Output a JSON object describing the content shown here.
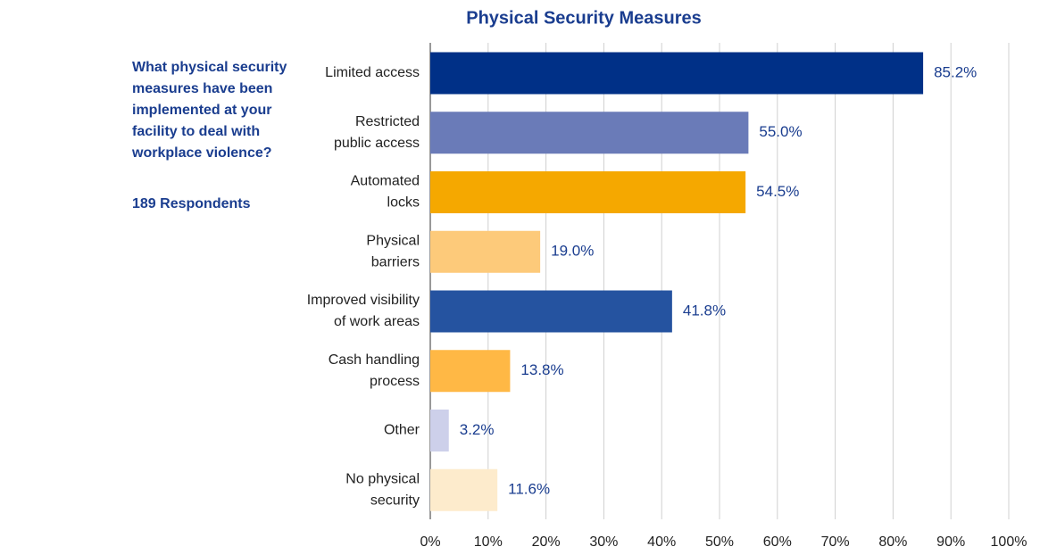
{
  "chart_data": {
    "type": "barh",
    "title": "Physical Security Measures",
    "question": [
      "What physical security",
      "measures have been",
      "implemented at your",
      "facility to deal with",
      "workplace violence?"
    ],
    "respondents": "189 Respondents",
    "categories": [
      "Limited access",
      "Restricted\npublic access",
      "Automated\nlocks",
      "Physical\nbarriers",
      "Improved visibility\nof work areas",
      "Cash handling\nprocess",
      "Other",
      "No physical\nsecurity"
    ],
    "values": [
      85.2,
      55.0,
      54.5,
      19.0,
      41.8,
      13.8,
      3.2,
      11.6
    ],
    "value_labels": [
      "85.2%",
      "55.0%",
      "54.5%",
      "19.0%",
      "41.8%",
      "13.8%",
      "3.2%",
      "11.6%"
    ],
    "colors": [
      "#003087",
      "#6a7bb8",
      "#f5a800",
      "#fdca7a",
      "#2553a0",
      "#ffb845",
      "#cdd0ea",
      "#fdebcc"
    ],
    "xlim": [
      0,
      100
    ],
    "xticks": [
      {
        "value": 0,
        "label": "0%"
      },
      {
        "value": 10,
        "label": "10%"
      },
      {
        "value": 20,
        "label": "20%"
      },
      {
        "value": 30,
        "label": "30%"
      },
      {
        "value": 40,
        "label": "40%"
      },
      {
        "value": 50,
        "label": "50%"
      },
      {
        "value": 60,
        "label": "60%"
      },
      {
        "value": 70,
        "label": "70%"
      },
      {
        "value": 80,
        "label": "80%"
      },
      {
        "value": 90,
        "label": "90%"
      },
      {
        "value": 100,
        "label": "100%"
      }
    ],
    "grid": true
  }
}
